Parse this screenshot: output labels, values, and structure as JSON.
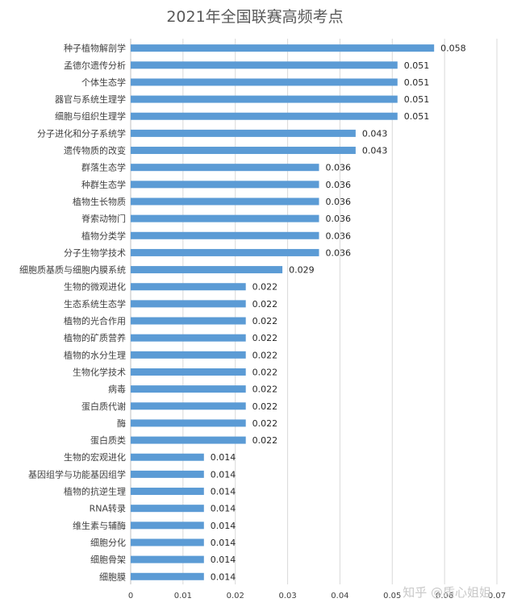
{
  "watermark": "知乎 @质心姐姐",
  "colors": {
    "bar": "#5b9bd5",
    "grid": "#d9d9d9",
    "text": "#404040"
  },
  "chart_data": {
    "type": "bar",
    "orientation": "horizontal",
    "title": "2021年全国联赛高频考点",
    "xlabel": "",
    "ylabel": "",
    "xlim": [
      0,
      0.07
    ],
    "x_ticks": [
      "0",
      "0.01",
      "0.02",
      "0.03",
      "0.04",
      "0.05",
      "0.06",
      "0.07"
    ],
    "grid": true,
    "categories": [
      "种子植物解剖学",
      "孟德尔遗传分析",
      "个体生态学",
      "器官与系统生理学",
      "细胞与组织生理学",
      "分子进化和分子系统学",
      "遗传物质的改变",
      "群落生态学",
      "种群生态学",
      "植物生长物质",
      "脊索动物门",
      "植物分类学",
      "分子生物学技术",
      "细胞质基质与细胞内膜系统",
      "生物的微观进化",
      "生态系统生态学",
      "植物的光合作用",
      "植物的矿质营养",
      "植物的水分生理",
      "生物化学技术",
      "病毒",
      "蛋白质代谢",
      "酶",
      "蛋白质类",
      "生物的宏观进化",
      "基因组学与功能基因组学",
      "植物的抗逆生理",
      "RNA转录",
      "维生素与辅酶",
      "细胞分化",
      "细胞骨架",
      "细胞膜"
    ],
    "values": [
      0.058,
      0.051,
      0.051,
      0.051,
      0.051,
      0.043,
      0.043,
      0.036,
      0.036,
      0.036,
      0.036,
      0.036,
      0.036,
      0.029,
      0.022,
      0.022,
      0.022,
      0.022,
      0.022,
      0.022,
      0.022,
      0.022,
      0.022,
      0.022,
      0.014,
      0.014,
      0.014,
      0.014,
      0.014,
      0.014,
      0.014,
      0.014
    ],
    "value_labels": [
      "0.058",
      "0.051",
      "0.051",
      "0.051",
      "0.051",
      "0.043",
      "0.043",
      "0.036",
      "0.036",
      "0.036",
      "0.036",
      "0.036",
      "0.036",
      "0.029",
      "0.022",
      "0.022",
      "0.022",
      "0.022",
      "0.022",
      "0.022",
      "0.022",
      "0.022",
      "0.022",
      "0.022",
      "0.014",
      "0.014",
      "0.014",
      "0.014",
      "0.014",
      "0.014",
      "0.014",
      "0.014"
    ]
  }
}
